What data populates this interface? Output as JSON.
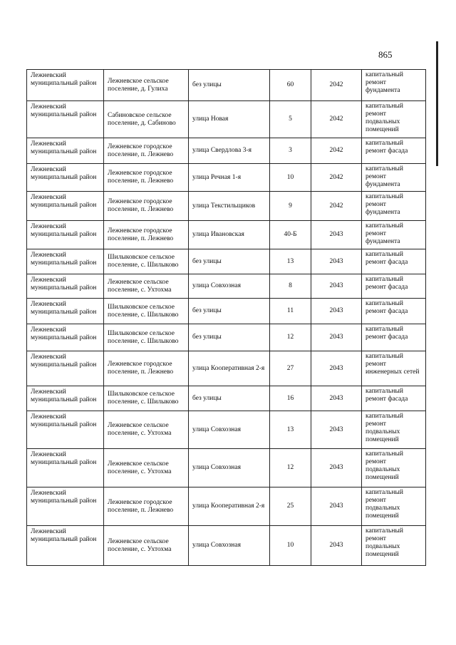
{
  "header": {
    "page_number": 865
  },
  "table": {
    "rows": [
      [
        "Лежневский муниципальный район",
        "Лежневское сельское поселение, д. Гулиха",
        "без улицы",
        60,
        2042,
        "капитальный ремонт фундамента"
      ],
      [
        "Лежневский муниципальный район",
        "Сабиновское сельское поселение, д. Сабиново",
        "улица Новая",
        5,
        2042,
        "капитальный ремонт подвальных помещений"
      ],
      [
        "Лежневский муниципальный район",
        "Лежневское городское поселение, п. Лежнево",
        "улица Свердлова 3-я",
        3,
        2042,
        "капитальный ремонт фасада"
      ],
      [
        "Лежневский муниципальный район",
        "Лежневское городское поселение, п. Лежнево",
        "улица Речная 1-я",
        10,
        2042,
        "капитальный ремонт фундамента"
      ],
      [
        "Лежневский муниципальный район",
        "Лежневское городское поселение, п. Лежнево",
        "улица Текстильщиков",
        9,
        2042,
        "капитальный ремонт фундамента"
      ],
      [
        "Лежневский муниципальный район",
        "Лежневское городское поселение, п. Лежнево",
        "улица Ивановская",
        "40-Б",
        2043,
        "капитальный ремонт фундамента"
      ],
      [
        "Лежневский муниципальный район",
        "Шилыковское сельское поселение, с. Шилыково",
        "без улицы",
        13,
        2043,
        "капитальный ремонт фасада"
      ],
      [
        "Лежневский муниципальный район",
        "Лежневское сельское поселение, с. Ухтохма",
        "улица Совхозная",
        8,
        2043,
        "капитальный ремонт фасада"
      ],
      [
        "Лежневский муниципальный район",
        "Шилыковское сельское поселение, с. Шилыково",
        "без улицы",
        11,
        2043,
        "капитальный ремонт фасада"
      ],
      [
        "Лежневский муниципальный район",
        "Шилыковское сельское поселение, с. Шилыково",
        "без улицы",
        12,
        2043,
        "капитальный ремонт фасада"
      ],
      [
        "Лежневский муниципальный район",
        "Лежневское городское поселение, п. Лежнево",
        "улица Кооперативная 2-я",
        27,
        2043,
        "капитальный ремонт инженерных сетей"
      ],
      [
        "Лежневский муниципальный район",
        "Шилыковское сельское поселение, с. Шилыково",
        "без улицы",
        16,
        2043,
        "капитальный ремонт фасада"
      ],
      [
        "Лежневский муниципальный район",
        "Лежневское сельское поселение, с. Ухтохма",
        "улица Совхозная",
        13,
        2043,
        "капитальный ремонт подвальных помещений"
      ],
      [
        "Лежневский муниципальный район",
        "Лежневское сельское поселение, с. Ухтохма",
        "улица Совхозная",
        12,
        2043,
        "капитальный ремонт подвальных помещений"
      ],
      [
        "Лежневский муниципальный район",
        "Лежневское городское поселение, п. Лежнево",
        "улица Кооперативная 2-я",
        25,
        2043,
        "капитальный ремонт подвальных помещений"
      ],
      [
        "Лежневский муниципальный район",
        "Лежневское сельское поселение, с. Ухтохма",
        "улица Совхозная",
        10,
        2043,
        "капитальный ремонт подвальных помещений"
      ]
    ]
  }
}
